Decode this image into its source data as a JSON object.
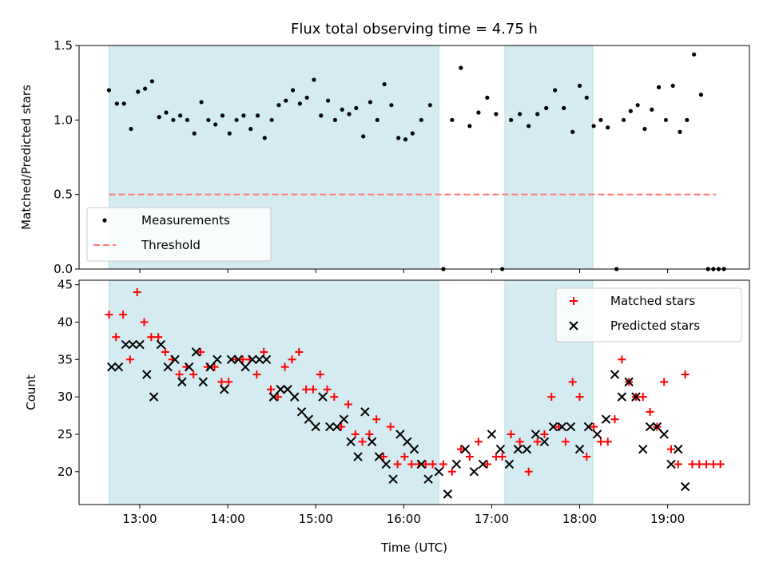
{
  "chart_data": [
    {
      "type": "scatter",
      "title": "Flux total observing time = 4.75 h",
      "xlabel": "",
      "ylabel": "Matched/Predicted stars",
      "xlim": [
        12.31,
        19.93
      ],
      "ylim": [
        0,
        1.5
      ],
      "y_ticks": [
        0.0,
        0.5,
        1.0,
        1.5
      ],
      "y_tick_labels": [
        "0.0",
        "0.5",
        "1.0",
        "1.5"
      ],
      "x_ticks": [
        13,
        14,
        15,
        16,
        17,
        18,
        19
      ],
      "grid": false,
      "legend_position": "bottom-left",
      "shaded_intervals": [
        [
          12.65,
          16.4
        ],
        [
          17.15,
          18.15
        ]
      ],
      "shade_color": "#d4ebf1",
      "series": [
        {
          "name": "Measurements",
          "marker": "dot",
          "color": "#000000",
          "points": [
            [
              12.65,
              1.2
            ],
            [
              12.74,
              1.11
            ],
            [
              12.82,
              1.11
            ],
            [
              12.9,
              0.94
            ],
            [
              12.98,
              1.19
            ],
            [
              13.06,
              1.21
            ],
            [
              13.14,
              1.26
            ],
            [
              13.22,
              1.02
            ],
            [
              13.3,
              1.05
            ],
            [
              13.38,
              1.0
            ],
            [
              13.46,
              1.03
            ],
            [
              13.54,
              1.0
            ],
            [
              13.62,
              0.91
            ],
            [
              13.7,
              1.12
            ],
            [
              13.78,
              1.0
            ],
            [
              13.86,
              0.97
            ],
            [
              13.94,
              1.03
            ],
            [
              14.02,
              0.91
            ],
            [
              14.1,
              1.0
            ],
            [
              14.18,
              1.03
            ],
            [
              14.26,
              0.94
            ],
            [
              14.34,
              1.03
            ],
            [
              14.42,
              0.88
            ],
            [
              14.5,
              1.0
            ],
            [
              14.58,
              1.1
            ],
            [
              14.66,
              1.13
            ],
            [
              14.74,
              1.2
            ],
            [
              14.82,
              1.11
            ],
            [
              14.9,
              1.15
            ],
            [
              14.98,
              1.27
            ],
            [
              15.06,
              1.03
            ],
            [
              15.14,
              1.13
            ],
            [
              15.22,
              1.0
            ],
            [
              15.3,
              1.07
            ],
            [
              15.38,
              1.04
            ],
            [
              15.46,
              1.08
            ],
            [
              15.54,
              0.89
            ],
            [
              15.62,
              1.12
            ],
            [
              15.7,
              1.0
            ],
            [
              15.78,
              1.24
            ],
            [
              15.86,
              1.1
            ],
            [
              15.94,
              0.88
            ],
            [
              16.02,
              0.87
            ],
            [
              16.1,
              0.91
            ],
            [
              16.2,
              1.0
            ],
            [
              16.3,
              1.1
            ],
            [
              16.45,
              0.0
            ],
            [
              16.55,
              1.0
            ],
            [
              16.65,
              1.35
            ],
            [
              16.75,
              0.96
            ],
            [
              16.85,
              1.05
            ],
            [
              16.95,
              1.15
            ],
            [
              17.05,
              1.04
            ],
            [
              17.12,
              0.0
            ],
            [
              17.22,
              1.0
            ],
            [
              17.32,
              1.04
            ],
            [
              17.42,
              0.96
            ],
            [
              17.52,
              1.04
            ],
            [
              17.62,
              1.08
            ],
            [
              17.72,
              1.2
            ],
            [
              17.82,
              1.08
            ],
            [
              17.92,
              0.92
            ],
            [
              18.0,
              1.23
            ],
            [
              18.08,
              1.15
            ],
            [
              18.16,
              0.96
            ],
            [
              18.24,
              1.0
            ],
            [
              18.32,
              0.95
            ],
            [
              18.42,
              0.0
            ],
            [
              18.5,
              1.0
            ],
            [
              18.58,
              1.06
            ],
            [
              18.66,
              1.1
            ],
            [
              18.74,
              0.94
            ],
            [
              18.82,
              1.07
            ],
            [
              18.9,
              1.22
            ],
            [
              18.98,
              1.0
            ],
            [
              19.06,
              1.23
            ],
            [
              19.14,
              0.92
            ],
            [
              19.22,
              1.0
            ],
            [
              19.3,
              1.44
            ],
            [
              19.38,
              1.17
            ],
            [
              19.46,
              0.0
            ],
            [
              19.52,
              0.0
            ],
            [
              19.58,
              0.0
            ],
            [
              19.64,
              0.0
            ]
          ]
        },
        {
          "name": "Threshold",
          "style": "dashed",
          "color": "#ff7a7a",
          "points": [
            [
              12.65,
              0.5
            ],
            [
              19.55,
              0.5
            ]
          ]
        }
      ]
    },
    {
      "type": "scatter",
      "title": "",
      "xlabel": "Time (UTC)",
      "ylabel": "Count",
      "xlim": [
        12.31,
        19.93
      ],
      "ylim": [
        15.6,
        45.6
      ],
      "y_ticks": [
        20,
        25,
        30,
        35,
        40,
        45
      ],
      "x_ticks": [
        13,
        14,
        15,
        16,
        17,
        18,
        19
      ],
      "x_tick_labels": [
        "13:00",
        "14:00",
        "15:00",
        "16:00",
        "17:00",
        "18:00",
        "19:00"
      ],
      "grid": false,
      "legend_position": "top-right",
      "shaded_intervals": [
        [
          12.65,
          16.4
        ],
        [
          17.15,
          18.15
        ]
      ],
      "shade_color": "#d4ebf1",
      "series": [
        {
          "name": "Matched stars",
          "marker": "plus",
          "color": "#ff0000",
          "points": [
            [
              12.65,
              41
            ],
            [
              12.73,
              38
            ],
            [
              12.81,
              41
            ],
            [
              12.89,
              35
            ],
            [
              12.97,
              44
            ],
            [
              13.05,
              40
            ],
            [
              13.13,
              38
            ],
            [
              13.21,
              38
            ],
            [
              13.29,
              36
            ],
            [
              13.37,
              35
            ],
            [
              13.45,
              33
            ],
            [
              13.53,
              34
            ],
            [
              13.61,
              33
            ],
            [
              13.69,
              36
            ],
            [
              13.77,
              34
            ],
            [
              13.85,
              34
            ],
            [
              13.93,
              32
            ],
            [
              14.01,
              32
            ],
            [
              14.09,
              35
            ],
            [
              14.17,
              35
            ],
            [
              14.25,
              35
            ],
            [
              14.33,
              33
            ],
            [
              14.41,
              36
            ],
            [
              14.49,
              31
            ],
            [
              14.57,
              30
            ],
            [
              14.65,
              34
            ],
            [
              14.73,
              35
            ],
            [
              14.81,
              36
            ],
            [
              14.89,
              31
            ],
            [
              14.97,
              31
            ],
            [
              15.05,
              33
            ],
            [
              15.13,
              31
            ],
            [
              15.21,
              30
            ],
            [
              15.29,
              26
            ],
            [
              15.37,
              29
            ],
            [
              15.45,
              25
            ],
            [
              15.53,
              24
            ],
            [
              15.61,
              25
            ],
            [
              15.69,
              27
            ],
            [
              15.77,
              22
            ],
            [
              15.85,
              26
            ],
            [
              15.93,
              21
            ],
            [
              16.01,
              22
            ],
            [
              16.09,
              21
            ],
            [
              16.17,
              21
            ],
            [
              16.25,
              21
            ],
            [
              16.33,
              21
            ],
            [
              16.45,
              21
            ],
            [
              16.55,
              20
            ],
            [
              16.65,
              23
            ],
            [
              16.75,
              22
            ],
            [
              16.85,
              24
            ],
            [
              16.95,
              21
            ],
            [
              17.05,
              22
            ],
            [
              17.12,
              22
            ],
            [
              17.22,
              25
            ],
            [
              17.32,
              24
            ],
            [
              17.42,
              20
            ],
            [
              17.52,
              24
            ],
            [
              17.6,
              25
            ],
            [
              17.68,
              30
            ],
            [
              17.76,
              26
            ],
            [
              17.84,
              24
            ],
            [
              17.92,
              32
            ],
            [
              18.0,
              30
            ],
            [
              18.08,
              22
            ],
            [
              18.16,
              26
            ],
            [
              18.24,
              24
            ],
            [
              18.32,
              24
            ],
            [
              18.4,
              27
            ],
            [
              18.48,
              35
            ],
            [
              18.56,
              32
            ],
            [
              18.64,
              30
            ],
            [
              18.72,
              30
            ],
            [
              18.8,
              28
            ],
            [
              18.88,
              26
            ],
            [
              18.96,
              32
            ],
            [
              19.04,
              23
            ],
            [
              19.12,
              21
            ],
            [
              19.2,
              33
            ],
            [
              19.28,
              21
            ],
            [
              19.36,
              21
            ],
            [
              19.44,
              21
            ],
            [
              19.52,
              21
            ],
            [
              19.6,
              21
            ]
          ]
        },
        {
          "name": "Predicted stars",
          "marker": "cross",
          "color": "#000000",
          "points": [
            [
              12.68,
              34
            ],
            [
              12.76,
              34
            ],
            [
              12.84,
              37
            ],
            [
              12.92,
              37
            ],
            [
              13.0,
              37
            ],
            [
              13.08,
              33
            ],
            [
              13.16,
              30
            ],
            [
              13.24,
              37
            ],
            [
              13.32,
              34
            ],
            [
              13.4,
              35
            ],
            [
              13.48,
              32
            ],
            [
              13.56,
              34
            ],
            [
              13.64,
              36
            ],
            [
              13.72,
              32
            ],
            [
              13.8,
              34
            ],
            [
              13.88,
              35
            ],
            [
              13.96,
              31
            ],
            [
              14.04,
              35
            ],
            [
              14.12,
              35
            ],
            [
              14.2,
              34
            ],
            [
              14.28,
              35
            ],
            [
              14.36,
              35
            ],
            [
              14.44,
              35
            ],
            [
              14.52,
              30
            ],
            [
              14.6,
              31
            ],
            [
              14.68,
              31
            ],
            [
              14.76,
              30
            ],
            [
              14.84,
              28
            ],
            [
              14.92,
              27
            ],
            [
              15.0,
              26
            ],
            [
              15.08,
              30
            ],
            [
              15.16,
              26
            ],
            [
              15.24,
              26
            ],
            [
              15.32,
              27
            ],
            [
              15.4,
              24
            ],
            [
              15.48,
              22
            ],
            [
              15.56,
              28
            ],
            [
              15.64,
              24
            ],
            [
              15.72,
              22
            ],
            [
              15.8,
              21
            ],
            [
              15.88,
              19
            ],
            [
              15.96,
              25
            ],
            [
              16.04,
              24
            ],
            [
              16.12,
              23
            ],
            [
              16.2,
              21
            ],
            [
              16.28,
              19
            ],
            [
              16.4,
              20
            ],
            [
              16.5,
              17
            ],
            [
              16.6,
              21
            ],
            [
              16.7,
              23
            ],
            [
              16.8,
              20
            ],
            [
              16.9,
              21
            ],
            [
              17.0,
              25
            ],
            [
              17.1,
              23
            ],
            [
              17.2,
              21
            ],
            [
              17.3,
              23
            ],
            [
              17.4,
              23
            ],
            [
              17.5,
              25
            ],
            [
              17.6,
              24
            ],
            [
              17.7,
              26
            ],
            [
              17.8,
              26
            ],
            [
              17.9,
              26
            ],
            [
              18.0,
              23
            ],
            [
              18.1,
              26
            ],
            [
              18.2,
              25
            ],
            [
              18.3,
              27
            ],
            [
              18.4,
              33
            ],
            [
              18.48,
              30
            ],
            [
              18.56,
              32
            ],
            [
              18.64,
              30
            ],
            [
              18.72,
              23
            ],
            [
              18.8,
              26
            ],
            [
              18.88,
              26
            ],
            [
              18.96,
              25
            ],
            [
              19.04,
              21
            ],
            [
              19.12,
              23
            ],
            [
              19.2,
              18
            ]
          ]
        }
      ]
    }
  ]
}
